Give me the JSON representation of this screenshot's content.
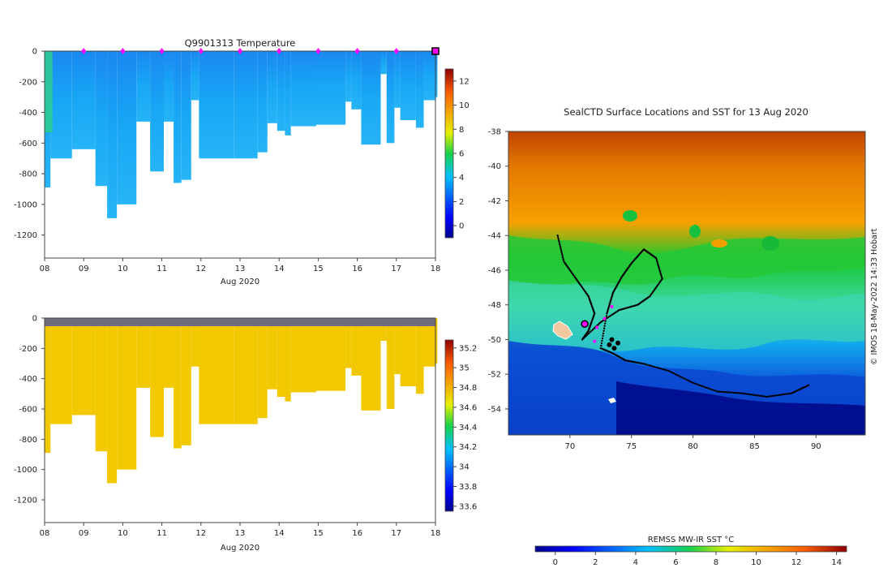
{
  "chart_data": [
    {
      "type": "heatmap",
      "title": "Q9901313  Temperature",
      "xlabel": "Aug 2020",
      "x_ticks": [
        "08",
        "09",
        "10",
        "11",
        "12",
        "13",
        "14",
        "15",
        "16",
        "17",
        "18"
      ],
      "y_ticks": [
        0,
        -200,
        -400,
        -600,
        -800,
        -1000,
        -1200
      ],
      "ylim": [
        -1350,
        0
      ],
      "colorbar": {
        "ticks": [
          0,
          2,
          4,
          6,
          8,
          10,
          12
        ],
        "range": [
          -1,
          13
        ]
      },
      "profile_markers_day": [
        9,
        10,
        11,
        12,
        13,
        14,
        15,
        16,
        17
      ],
      "current_marker_day": 18,
      "profile_depths": [
        {
          "day": 8.0,
          "depth": 890
        },
        {
          "day": 8.15,
          "depth": 700
        },
        {
          "day": 8.7,
          "depth": 640
        },
        {
          "day": 9.3,
          "depth": 880
        },
        {
          "day": 9.6,
          "depth": 1090
        },
        {
          "day": 9.85,
          "depth": 1000
        },
        {
          "day": 10.35,
          "depth": 460
        },
        {
          "day": 10.7,
          "depth": 785
        },
        {
          "day": 11.05,
          "depth": 460
        },
        {
          "day": 11.3,
          "depth": 860
        },
        {
          "day": 11.5,
          "depth": 840
        },
        {
          "day": 11.75,
          "depth": 320
        },
        {
          "day": 11.95,
          "depth": 700
        },
        {
          "day": 12.85,
          "depth": 700
        },
        {
          "day": 13.45,
          "depth": 660
        },
        {
          "day": 13.7,
          "depth": 470
        },
        {
          "day": 13.95,
          "depth": 520
        },
        {
          "day": 14.15,
          "depth": 550
        },
        {
          "day": 14.3,
          "depth": 490
        },
        {
          "day": 14.95,
          "depth": 480
        },
        {
          "day": 15.7,
          "depth": 330
        },
        {
          "day": 15.85,
          "depth": 380
        },
        {
          "day": 16.1,
          "depth": 610
        },
        {
          "day": 16.6,
          "depth": 150
        },
        {
          "day": 16.75,
          "depth": 600
        },
        {
          "day": 16.95,
          "depth": 370
        },
        {
          "day": 17.1,
          "depth": 450
        },
        {
          "day": 17.5,
          "depth": 500
        },
        {
          "day": 17.7,
          "depth": 320
        },
        {
          "day": 18.0,
          "depth": 300
        }
      ]
    },
    {
      "type": "heatmap",
      "title": "",
      "xlabel": "Aug 2020",
      "x_ticks": [
        "08",
        "09",
        "10",
        "11",
        "12",
        "13",
        "14",
        "15",
        "16",
        "17",
        "18"
      ],
      "y_ticks": [
        0,
        -200,
        -400,
        -600,
        -800,
        -1000,
        -1200
      ],
      "ylim": [
        -1350,
        0
      ],
      "colorbar": {
        "ticks": [
          33.6,
          33.8,
          34,
          34.2,
          34.4,
          34.6,
          34.8,
          35,
          35.2
        ],
        "range": [
          33.55,
          35.28
        ]
      }
    },
    {
      "type": "heatmap",
      "title": "SealCTD Surface Locations and SST for 13 Aug 2020",
      "x_ticks": [
        70,
        75,
        80,
        85,
        90
      ],
      "y_ticks": [
        -38,
        -40,
        -42,
        -44,
        -46,
        -48,
        -50,
        -52,
        -54
      ],
      "xlim": [
        65,
        94
      ],
      "ylim": [
        -55.5,
        -38
      ],
      "colorbar": {
        "label": "REMSS MW-IR SST °C",
        "ticks": [
          0,
          2,
          4,
          6,
          8,
          10,
          12,
          14
        ],
        "range": [
          -1,
          14.5
        ]
      },
      "track_points": [
        [
          69,
          -44
        ],
        [
          69.5,
          -45.5
        ],
        [
          70.5,
          -46.5
        ],
        [
          71.5,
          -47.5
        ],
        [
          72,
          -48.5
        ],
        [
          71.5,
          -49.5
        ],
        [
          71,
          -50
        ],
        [
          72.5,
          -49
        ],
        [
          74,
          -48.3
        ],
        [
          75.5,
          -48
        ],
        [
          76.5,
          -47.5
        ],
        [
          77.5,
          -46.5
        ],
        [
          77,
          -45.3
        ],
        [
          76,
          -44.8
        ],
        [
          75,
          -45.6
        ],
        [
          74.2,
          -46.4
        ],
        [
          73.5,
          -47.3
        ],
        [
          73,
          -48.5
        ],
        [
          72.5,
          -50.5
        ],
        [
          73.5,
          -50.8
        ],
        [
          74.5,
          -51.2
        ],
        [
          76,
          -51.4
        ],
        [
          78,
          -51.8
        ],
        [
          80,
          -52.5
        ],
        [
          82,
          -53
        ],
        [
          84,
          -53.1
        ],
        [
          86,
          -53.3
        ],
        [
          88,
          -53.1
        ],
        [
          89.5,
          -52.6
        ]
      ],
      "highlight_point": [
        71.2,
        -49.1
      ],
      "credit": "© IMOS 18-May-2022 14:33 Hobart"
    }
  ]
}
